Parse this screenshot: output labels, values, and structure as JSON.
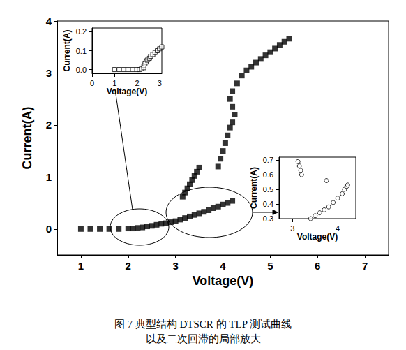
{
  "chart_data": [
    {
      "type": "scatter",
      "title": "图 7 典型结构 DTSCR 的 TLP 测试曲线",
      "subtitle": "以及二次回滞的局部放大",
      "x_label": "Voltage(V)",
      "y_label": "Current(A)",
      "xlim": [
        0.5,
        7.5
      ],
      "xticks": [
        1,
        2,
        3,
        4,
        5,
        6,
        7
      ],
      "ylim": [
        -0.5,
        4
      ],
      "yticks": [
        0,
        1,
        2,
        3,
        4
      ],
      "grid": false,
      "color": "#000000",
      "marker": "square",
      "x": [
        1.0,
        1.2,
        1.4,
        1.6,
        1.8,
        2.0,
        2.1,
        2.2,
        2.3,
        2.4,
        2.5,
        2.6,
        2.7,
        2.8,
        2.9,
        3.0,
        3.1,
        3.2,
        3.3,
        3.4,
        3.5,
        3.6,
        3.7,
        3.8,
        3.9,
        4.0,
        4.1,
        4.2,
        3.15,
        3.2,
        3.25,
        3.3,
        3.35,
        3.4,
        3.45,
        3.5,
        3.9,
        3.95,
        4.0,
        4.05,
        4.1,
        4.15,
        4.2,
        4.25,
        4.2,
        4.15,
        4.2,
        4.3,
        4.4,
        4.5,
        4.6,
        4.7,
        4.8,
        4.9,
        5.0,
        5.1,
        5.2,
        5.3,
        5.4
      ],
      "values": [
        0,
        0,
        0,
        0,
        0,
        0.01,
        0.01,
        0.02,
        0.03,
        0.05,
        0.06,
        0.08,
        0.1,
        0.11,
        0.13,
        0.15,
        0.18,
        0.21,
        0.24,
        0.27,
        0.3,
        0.33,
        0.36,
        0.4,
        0.43,
        0.47,
        0.5,
        0.54,
        0.62,
        0.7,
        0.78,
        0.86,
        0.94,
        1.02,
        1.1,
        1.18,
        1.2,
        1.35,
        1.5,
        1.65,
        1.8,
        1.95,
        2.05,
        2.2,
        2.35,
        2.5,
        2.65,
        2.8,
        2.95,
        3.05,
        3.12,
        3.2,
        3.27,
        3.34,
        3.4,
        3.47,
        3.54,
        3.6,
        3.66
      ]
    },
    {
      "type": "scatter",
      "x_label": "Voltage(V)",
      "y_label": "Current(A)",
      "xlim": [
        0,
        3.1
      ],
      "xticks": [
        0,
        1,
        2,
        3
      ],
      "ylim": [
        -0.02,
        0.22
      ],
      "yticks": [
        {
          "value": 0,
          "label": "0.0"
        },
        0.1,
        0.2
      ],
      "grid": false,
      "color": "#000000",
      "marker": "square_open",
      "x": [
        1.0,
        1.2,
        1.4,
        1.6,
        1.8,
        2.0,
        2.1,
        2.2,
        2.3,
        2.3,
        2.35,
        2.4,
        2.45,
        2.5,
        2.55,
        2.6,
        2.7,
        2.8,
        2.9,
        3.0,
        3.1
      ],
      "values": [
        0,
        0,
        0,
        0,
        0,
        0,
        0,
        0.005,
        0.01,
        0.02,
        0.03,
        0.04,
        0.05,
        0.055,
        0.06,
        0.07,
        0.08,
        0.09,
        0.1,
        0.11,
        0.12
      ]
    },
    {
      "type": "scatter",
      "x_label": "Voltage(V)",
      "y_label": "Current(A)",
      "xlim": [
        2.7,
        4.4
      ],
      "xticks": [
        3,
        4
      ],
      "ylim": [
        0.3,
        0.72
      ],
      "yticks": [
        0.3,
        0.4,
        0.5,
        0.6,
        0.7
      ],
      "grid": false,
      "color": "#000000",
      "marker": "circle_open",
      "x": [
        3.12,
        3.15,
        3.18,
        3.2,
        3.75,
        3.4,
        3.5,
        3.6,
        3.7,
        3.8,
        3.9,
        4.0,
        4.1,
        4.15,
        4.2,
        4.22
      ],
      "values": [
        0.69,
        0.66,
        0.63,
        0.6,
        0.56,
        0.3,
        0.32,
        0.34,
        0.36,
        0.38,
        0.41,
        0.44,
        0.47,
        0.5,
        0.52,
        0.53
      ]
    }
  ]
}
